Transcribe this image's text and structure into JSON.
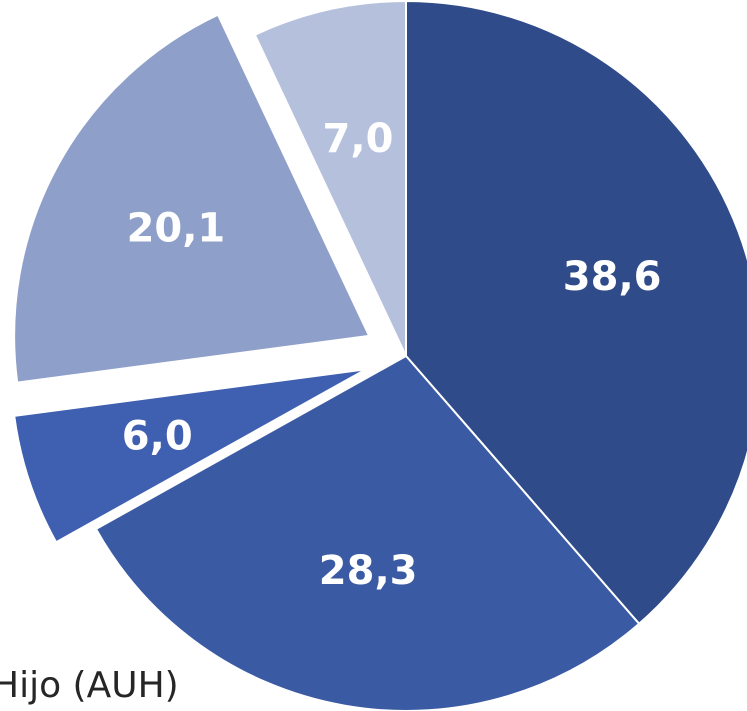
{
  "chart_data": {
    "type": "pie",
    "slices": [
      {
        "label": "38,6",
        "value": 38.6,
        "color": "#2f4b8a",
        "exploded": false
      },
      {
        "label": "28,3",
        "value": 28.3,
        "color": "#3a5aa3",
        "exploded": false
      },
      {
        "label": "6,0",
        "value": 6.0,
        "color": "#3f5fb0",
        "exploded": true
      },
      {
        "label": "20,1",
        "value": 20.1,
        "color": "#8e9fc9",
        "exploded": true
      },
      {
        "label": "7,0",
        "value": 7.0,
        "color": "#b5c0dd",
        "exploded": false
      }
    ],
    "legend": [
      "Hijo (AUH)"
    ],
    "start_angle_deg": 0,
    "direction": "clockwise"
  }
}
